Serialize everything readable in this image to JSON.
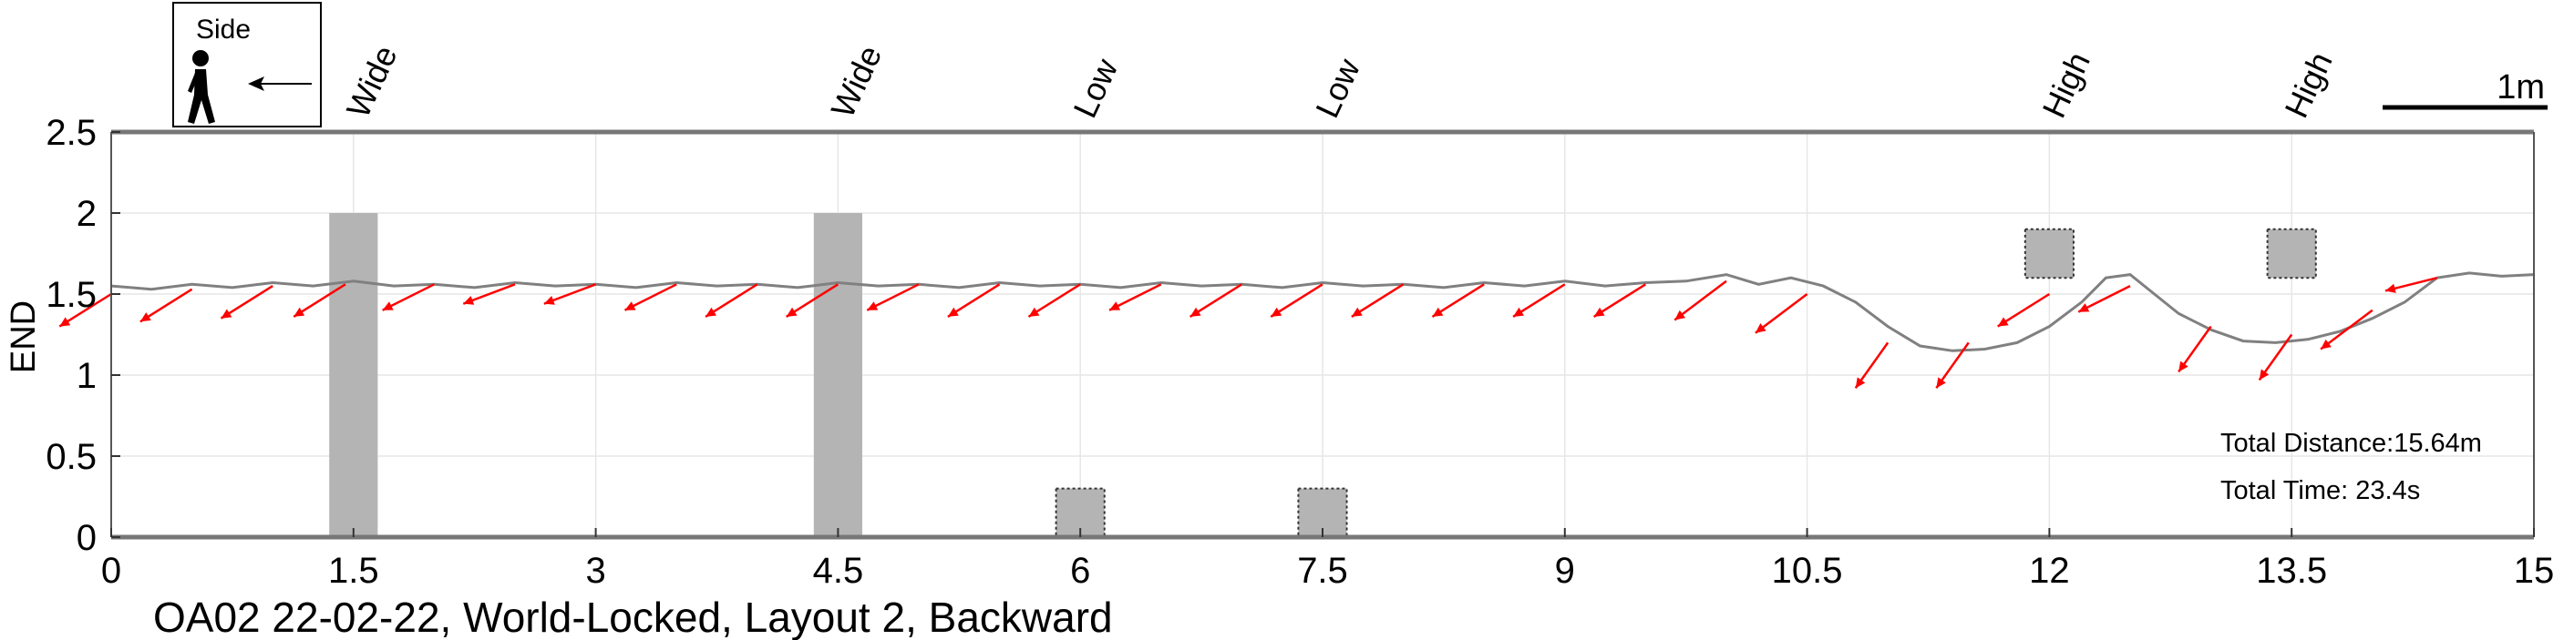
{
  "chart_data": {
    "type": "line",
    "title": "OA02 22-02-22, World-Locked, Layout 2, Backward",
    "xlabel": "",
    "ylabel": "END",
    "xlim": [
      0,
      15
    ],
    "ylim": [
      0,
      2.5
    ],
    "x_ticks": [
      0,
      1.5,
      3,
      4.5,
      6,
      7.5,
      9,
      10.5,
      12,
      13.5,
      15
    ],
    "x_tick_labels": [
      "0",
      "1.5",
      "3",
      "4.5",
      "6",
      "7.5",
      "9",
      "10.5",
      "12",
      "13.5",
      "15"
    ],
    "y_ticks": [
      0,
      0.5,
      1,
      1.5,
      2,
      2.5
    ],
    "y_tick_labels": [
      "0",
      "0.5",
      "1",
      "1.5",
      "2",
      "2.5"
    ],
    "grid": true,
    "colors": {
      "path": "#808080",
      "arrows": "#ff0000",
      "obstacles": "#b4b4b4",
      "axes": "#777777"
    },
    "series": [
      {
        "x": [
          0.0,
          0.25,
          0.5,
          0.75,
          1.0,
          1.25,
          1.5,
          1.75,
          2.0,
          2.25,
          2.5,
          2.75,
          3.0,
          3.25,
          3.5,
          3.75,
          4.0,
          4.25,
          4.5,
          4.75,
          5.0,
          5.25,
          5.5,
          5.75,
          6.0,
          6.25,
          6.5,
          6.75,
          7.0,
          7.25,
          7.5,
          7.75,
          8.0,
          8.25,
          8.5,
          8.75,
          9.0,
          9.25,
          9.5,
          9.75,
          10.0,
          10.2,
          10.4,
          10.6,
          10.8,
          11.0,
          11.2,
          11.4,
          11.6,
          11.8,
          12.0,
          12.2,
          12.35,
          12.5,
          12.65,
          12.8,
          13.0,
          13.2,
          13.4,
          13.6,
          13.8,
          14.0,
          14.2,
          14.4,
          14.6,
          14.8,
          15.0
        ],
        "y": [
          1.55,
          1.53,
          1.56,
          1.54,
          1.57,
          1.55,
          1.58,
          1.55,
          1.56,
          1.54,
          1.57,
          1.55,
          1.56,
          1.54,
          1.57,
          1.55,
          1.56,
          1.54,
          1.57,
          1.55,
          1.56,
          1.54,
          1.57,
          1.55,
          1.56,
          1.54,
          1.57,
          1.55,
          1.56,
          1.54,
          1.57,
          1.55,
          1.56,
          1.54,
          1.57,
          1.55,
          1.58,
          1.55,
          1.57,
          1.58,
          1.62,
          1.56,
          1.6,
          1.55,
          1.45,
          1.3,
          1.18,
          1.15,
          1.16,
          1.2,
          1.3,
          1.45,
          1.6,
          1.62,
          1.5,
          1.38,
          1.28,
          1.21,
          1.2,
          1.22,
          1.27,
          1.35,
          1.45,
          1.6,
          1.63,
          1.61,
          1.62
        ]
      }
    ],
    "obstacles": [
      {
        "label": "Wide",
        "x_from": 1.35,
        "x_to": 1.65,
        "y_from": 0,
        "y_to": 2.0,
        "style": "solid"
      },
      {
        "label": "Wide",
        "x_from": 4.35,
        "x_to": 4.65,
        "y_from": 0,
        "y_to": 2.0,
        "style": "solid"
      },
      {
        "label": "Low",
        "x_from": 5.85,
        "x_to": 6.15,
        "y_from": 0,
        "y_to": 0.3,
        "style": "dotted"
      },
      {
        "label": "Low",
        "x_from": 7.35,
        "x_to": 7.65,
        "y_from": 0,
        "y_to": 0.3,
        "style": "dotted"
      },
      {
        "label": "High",
        "x_from": 11.85,
        "x_to": 12.15,
        "y_from": 1.6,
        "y_to": 1.9,
        "style": "dotted"
      },
      {
        "label": "High",
        "x_from": 13.35,
        "x_to": 13.65,
        "y_from": 1.6,
        "y_to": 1.9,
        "style": "dotted"
      }
    ],
    "orientation_arrows": [
      [
        0.0,
        1.5,
        -0.08,
        -0.05
      ],
      [
        0.5,
        1.53,
        -0.08,
        -0.05
      ],
      [
        1.0,
        1.55,
        -0.08,
        -0.05
      ],
      [
        1.45,
        1.56,
        -0.08,
        -0.05
      ],
      [
        2.0,
        1.56,
        -0.08,
        -0.04
      ],
      [
        2.5,
        1.56,
        -0.08,
        -0.03
      ],
      [
        3.0,
        1.56,
        -0.08,
        -0.03
      ],
      [
        3.5,
        1.56,
        -0.08,
        -0.04
      ],
      [
        4.0,
        1.56,
        -0.08,
        -0.05
      ],
      [
        4.5,
        1.56,
        -0.08,
        -0.05
      ],
      [
        5.0,
        1.56,
        -0.08,
        -0.04
      ],
      [
        5.5,
        1.56,
        -0.08,
        -0.05
      ],
      [
        6.0,
        1.56,
        -0.08,
        -0.05
      ],
      [
        6.5,
        1.56,
        -0.08,
        -0.04
      ],
      [
        7.0,
        1.56,
        -0.08,
        -0.05
      ],
      [
        7.5,
        1.56,
        -0.08,
        -0.05
      ],
      [
        8.0,
        1.56,
        -0.08,
        -0.05
      ],
      [
        8.5,
        1.56,
        -0.08,
        -0.05
      ],
      [
        9.0,
        1.56,
        -0.08,
        -0.05
      ],
      [
        9.5,
        1.56,
        -0.08,
        -0.05
      ],
      [
        10.0,
        1.58,
        -0.08,
        -0.06
      ],
      [
        10.5,
        1.5,
        -0.08,
        -0.06
      ],
      [
        11.0,
        1.2,
        -0.05,
        -0.07
      ],
      [
        11.5,
        1.2,
        -0.05,
        -0.07
      ],
      [
        12.0,
        1.5,
        -0.08,
        -0.05
      ],
      [
        12.5,
        1.55,
        -0.08,
        -0.04
      ],
      [
        13.0,
        1.3,
        -0.05,
        -0.07
      ],
      [
        13.5,
        1.25,
        -0.05,
        -0.07
      ],
      [
        14.0,
        1.4,
        -0.08,
        -0.06
      ],
      [
        14.4,
        1.6,
        -0.08,
        -0.02
      ]
    ],
    "annotations": [
      "Total Distance:15.64m",
      "Total Time: 23.4s"
    ],
    "legend": {
      "label": "Side",
      "direction": "left",
      "placement": "top-left"
    },
    "scale_bar": {
      "label": "1m",
      "length": 1,
      "placement": "top-right"
    }
  }
}
